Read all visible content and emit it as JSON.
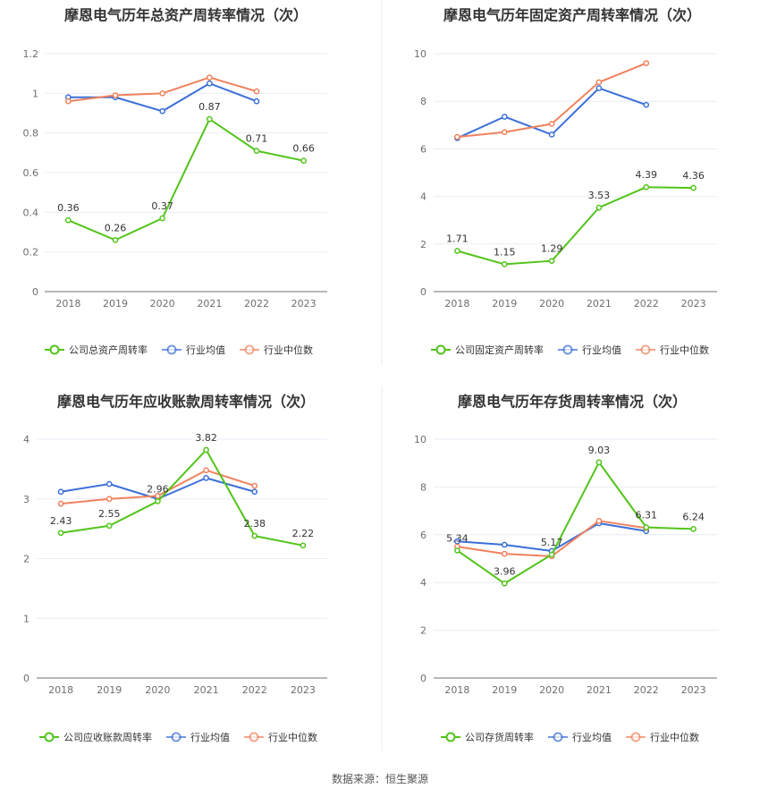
{
  "colors": {
    "company": "#52c41a",
    "avg": "#3b6fd8",
    "median": "#f0825e",
    "grid": "#e8ecf4",
    "axis": "#6e7079"
  },
  "legend_labels": {
    "avg": "行业均值",
    "median": "行业中位数"
  },
  "source_text": "数据来源：恒生聚源",
  "chart_data": [
    {
      "type": "line",
      "title": "摩恩电气历年总资产周转率情况（次）",
      "categories": [
        "2018",
        "2019",
        "2020",
        "2021",
        "2022",
        "2023"
      ],
      "ylim": [
        0,
        1.2
      ],
      "yticks": [
        "0",
        "0.2",
        "0.4",
        "0.6",
        "0.8",
        "1",
        "1.2"
      ],
      "grid": true,
      "legend": "bottom",
      "series": [
        {
          "name": "公司总资产周转率",
          "key": "company",
          "values": [
            0.36,
            0.26,
            0.37,
            0.87,
            0.71,
            0.66
          ],
          "labels": [
            "0.36",
            "0.26",
            "0.37",
            "0.87",
            "0.71",
            "0.66"
          ]
        },
        {
          "name": "行业均值",
          "key": "avg",
          "values": [
            0.98,
            0.98,
            0.91,
            1.05,
            0.96,
            null
          ]
        },
        {
          "name": "行业中位数",
          "key": "median",
          "values": [
            0.96,
            0.99,
            1.0,
            1.08,
            1.01,
            null
          ]
        }
      ]
    },
    {
      "type": "line",
      "title": "摩恩电气历年固定资产周转率情况（次）",
      "categories": [
        "2018",
        "2019",
        "2020",
        "2021",
        "2022",
        "2023"
      ],
      "ylim": [
        0,
        10
      ],
      "yticks": [
        "0",
        "2",
        "4",
        "6",
        "8",
        "10"
      ],
      "grid": true,
      "legend": "bottom",
      "series": [
        {
          "name": "公司固定资产周转率",
          "key": "company",
          "values": [
            1.71,
            1.15,
            1.29,
            3.53,
            4.39,
            4.36
          ],
          "labels": [
            "1.71",
            "1.15",
            "1.29",
            "3.53",
            "4.39",
            "4.36"
          ]
        },
        {
          "name": "行业均值",
          "key": "avg",
          "values": [
            6.45,
            7.35,
            6.6,
            8.55,
            7.85,
            null
          ]
        },
        {
          "name": "行业中位数",
          "key": "median",
          "values": [
            6.5,
            6.7,
            7.05,
            8.8,
            9.6,
            null
          ]
        }
      ]
    },
    {
      "type": "line",
      "title": "摩恩电气历年应收账款周转率情况（次）",
      "categories": [
        "2018",
        "2019",
        "2020",
        "2021",
        "2022",
        "2023"
      ],
      "ylim": [
        0,
        4
      ],
      "yticks": [
        "0",
        "1",
        "2",
        "3",
        "4"
      ],
      "grid": true,
      "legend": "bottom",
      "series": [
        {
          "name": "公司应收账款周转率",
          "key": "company",
          "values": [
            2.43,
            2.55,
            2.96,
            3.82,
            2.38,
            2.22
          ],
          "labels": [
            "2.43",
            "2.55",
            "2.96",
            "3.82",
            "2.38",
            "2.22"
          ]
        },
        {
          "name": "行业均值",
          "key": "avg",
          "values": [
            3.12,
            3.25,
            3.0,
            3.35,
            3.12,
            null
          ]
        },
        {
          "name": "行业中位数",
          "key": "median",
          "values": [
            2.92,
            3.0,
            3.05,
            3.48,
            3.22,
            null
          ]
        }
      ]
    },
    {
      "type": "line",
      "title": "摩恩电气历年存货周转率情况（次）",
      "categories": [
        "2018",
        "2019",
        "2020",
        "2021",
        "2022",
        "2023"
      ],
      "ylim": [
        0,
        10
      ],
      "yticks": [
        "0",
        "2",
        "4",
        "6",
        "8",
        "10"
      ],
      "grid": true,
      "legend": "bottom",
      "series": [
        {
          "name": "公司存货周转率",
          "key": "company",
          "values": [
            5.34,
            3.96,
            5.17,
            9.03,
            6.31,
            6.24
          ],
          "labels": [
            "5.34",
            "3.96",
            "5.17",
            "9.03",
            "6.31",
            "6.24"
          ]
        },
        {
          "name": "行业均值",
          "key": "avg",
          "values": [
            5.72,
            5.58,
            5.32,
            6.48,
            6.15,
            null
          ]
        },
        {
          "name": "行业中位数",
          "key": "median",
          "values": [
            5.5,
            5.2,
            5.1,
            6.58,
            6.28,
            null
          ]
        }
      ]
    }
  ]
}
